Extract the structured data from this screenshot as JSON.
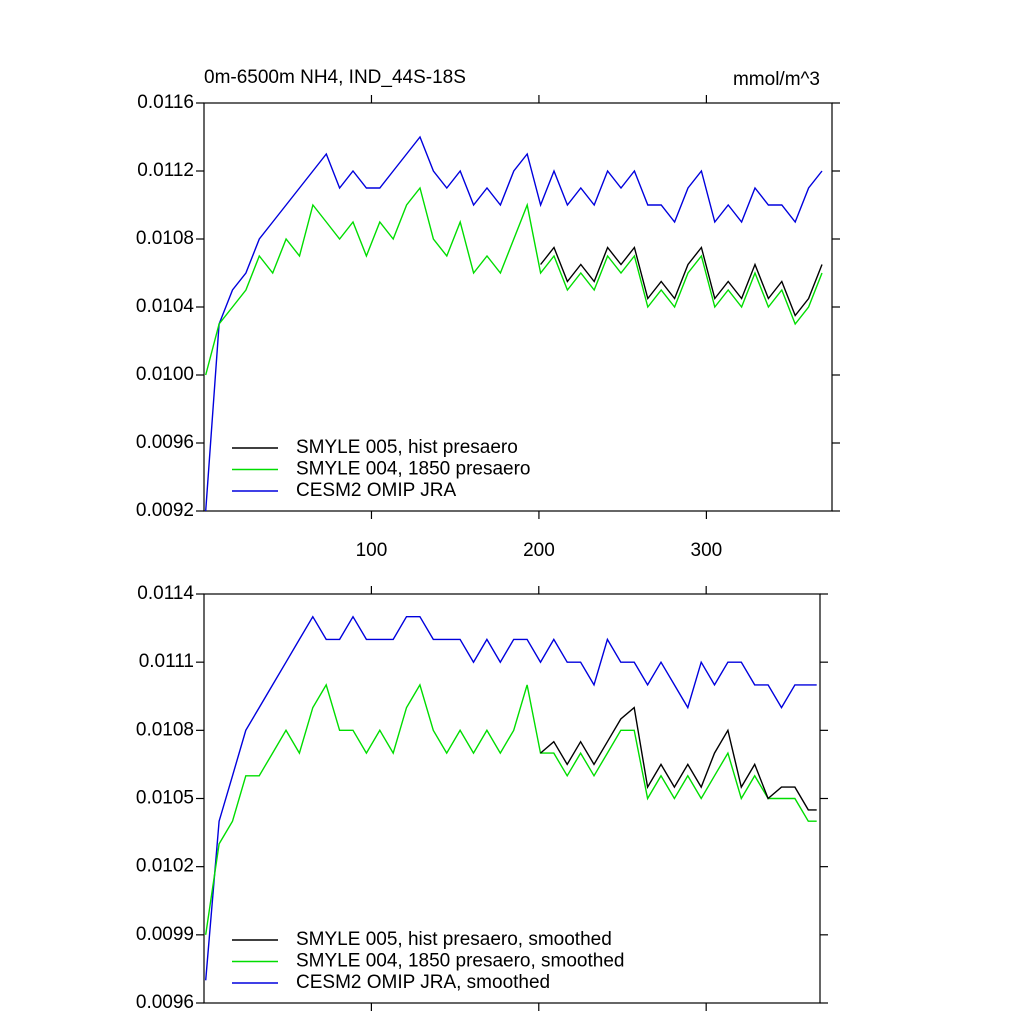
{
  "chart_data": [
    {
      "type": "line",
      "title": "0m-6500m NH4, IND_44S-18S",
      "units": "mmol/m^3",
      "x": [
        1,
        9,
        17,
        25,
        33,
        41,
        49,
        57,
        65,
        73,
        81,
        89,
        97,
        105,
        113,
        121,
        129,
        137,
        145,
        153,
        161,
        169,
        177,
        185,
        193,
        201,
        209,
        217,
        225,
        233,
        241,
        249,
        257,
        265,
        273,
        281,
        289,
        297,
        305,
        313,
        321,
        329,
        337,
        345,
        353,
        361,
        369
      ],
      "series": [
        {
          "name": "SMYLE 005, hist presaero",
          "color": "#000000",
          "values": [
            null,
            null,
            null,
            null,
            null,
            null,
            null,
            null,
            null,
            null,
            null,
            null,
            null,
            null,
            null,
            null,
            null,
            null,
            null,
            null,
            null,
            null,
            null,
            null,
            null,
            0.01065,
            0.01075,
            0.01055,
            0.01065,
            0.01055,
            0.01075,
            0.01065,
            0.01075,
            0.01045,
            0.01055,
            0.01045,
            0.01065,
            0.01075,
            0.01045,
            0.01055,
            0.01045,
            0.01065,
            0.01045,
            0.01055,
            0.01035,
            0.01045,
            0.01065
          ]
        },
        {
          "name": "SMYLE 004, 1850 presaero",
          "color": "#00dd00",
          "values": [
            0.01,
            0.0103,
            0.0104,
            0.0105,
            0.0107,
            0.0106,
            0.0108,
            0.0107,
            0.011,
            0.0109,
            0.0108,
            0.0109,
            0.0107,
            0.0109,
            0.0108,
            0.011,
            0.0111,
            0.0108,
            0.0107,
            0.0109,
            0.0106,
            0.0107,
            0.0106,
            0.0108,
            0.011,
            0.0106,
            0.0107,
            0.0105,
            0.0106,
            0.0105,
            0.0107,
            0.0106,
            0.0107,
            0.0104,
            0.0105,
            0.0104,
            0.0106,
            0.0107,
            0.0104,
            0.0105,
            0.0104,
            0.0106,
            0.0104,
            0.0105,
            0.0103,
            0.0104,
            0.0106
          ]
        },
        {
          "name": "CESM2 OMIP JRA",
          "color": "#0000dd",
          "values": [
            0.0092,
            0.0103,
            0.0105,
            0.0106,
            0.0108,
            0.0109,
            0.011,
            0.0111,
            0.0112,
            0.0113,
            0.0111,
            0.0112,
            0.0111,
            0.0111,
            0.0112,
            0.0113,
            0.0114,
            0.0112,
            0.0111,
            0.0112,
            0.011,
            0.0111,
            0.011,
            0.0112,
            0.0113,
            0.011,
            0.0112,
            0.011,
            0.0111,
            0.011,
            0.0112,
            0.0111,
            0.0112,
            0.011,
            0.011,
            0.0109,
            0.0111,
            0.0112,
            0.0109,
            0.011,
            0.0109,
            0.0111,
            0.011,
            0.011,
            0.0109,
            0.0111,
            0.0112
          ]
        }
      ],
      "xlim": [
        0,
        375
      ],
      "xticks": [
        100,
        200,
        300
      ],
      "ylim": [
        0.0092,
        0.0116
      ],
      "yticks": [
        0.0092,
        0.0096,
        {
          "value": 0.01,
          "label": "0.0100"
        },
        0.0104,
        0.0108,
        0.0112,
        0.0116
      ],
      "legend": "lower left"
    },
    {
      "type": "line",
      "x": [
        1,
        9,
        17,
        25,
        33,
        41,
        49,
        57,
        65,
        73,
        81,
        89,
        97,
        105,
        113,
        121,
        129,
        137,
        145,
        153,
        161,
        169,
        177,
        185,
        193,
        201,
        209,
        217,
        225,
        233,
        241,
        249,
        257,
        265,
        273,
        281,
        289,
        297,
        305,
        313,
        321,
        329,
        337,
        345,
        353,
        361,
        366
      ],
      "series": [
        {
          "name": "SMYLE 005, hist presaero, smoothed",
          "color": "#000000",
          "values": [
            null,
            null,
            null,
            null,
            null,
            null,
            null,
            null,
            null,
            null,
            null,
            null,
            null,
            null,
            null,
            null,
            null,
            null,
            null,
            null,
            null,
            null,
            null,
            null,
            null,
            0.0107,
            0.01075,
            0.01065,
            0.01075,
            0.01065,
            0.01075,
            0.01085,
            0.0109,
            0.01055,
            0.01065,
            0.01055,
            0.01065,
            0.01055,
            0.0107,
            0.0108,
            0.01055,
            0.01065,
            0.0105,
            0.01055,
            0.01055,
            0.01045,
            0.01045
          ]
        },
        {
          "name": "SMYLE 004, 1850 presaero, smoothed",
          "color": "#00dd00",
          "values": [
            0.0099,
            0.0103,
            0.0104,
            0.0106,
            0.0106,
            0.0107,
            0.0108,
            0.0107,
            0.0109,
            0.011,
            0.0108,
            0.0108,
            0.0107,
            0.0108,
            0.0107,
            0.0109,
            0.011,
            0.0108,
            0.0107,
            0.0108,
            0.0107,
            0.0108,
            0.0107,
            0.0108,
            0.011,
            0.0107,
            0.0107,
            0.0106,
            0.0107,
            0.0106,
            0.0107,
            0.0108,
            0.0108,
            0.0105,
            0.0106,
            0.0105,
            0.0106,
            0.0105,
            0.0106,
            0.0107,
            0.0105,
            0.0106,
            0.0105,
            0.0105,
            0.0105,
            0.0104,
            0.0104
          ]
        },
        {
          "name": "CESM2 OMIP JRA, smoothed",
          "color": "#0000dd",
          "values": [
            0.0097,
            0.0104,
            0.0106,
            0.0108,
            0.0109,
            0.011,
            0.0111,
            0.0112,
            0.0113,
            0.0112,
            0.0112,
            0.0113,
            0.0112,
            0.0112,
            0.0112,
            0.0113,
            0.0113,
            0.0112,
            0.0112,
            0.0112,
            0.0111,
            0.0112,
            0.0111,
            0.0112,
            0.0112,
            0.0111,
            0.0112,
            0.0111,
            0.0111,
            0.011,
            0.0112,
            0.0111,
            0.0111,
            0.011,
            0.0111,
            0.011,
            0.0109,
            0.0111,
            0.011,
            0.0111,
            0.0111,
            0.011,
            0.011,
            0.0109,
            0.011,
            0.011,
            0.011
          ]
        }
      ],
      "xlim": [
        0,
        368
      ],
      "xticks": [
        100,
        200,
        300
      ],
      "xtick_labels": false,
      "ylim": [
        0.0096,
        0.0114
      ],
      "yticks": [
        0.0096,
        0.0099,
        0.0102,
        0.0105,
        0.0108,
        0.0111,
        0.0114
      ],
      "legend": "lower left"
    }
  ]
}
